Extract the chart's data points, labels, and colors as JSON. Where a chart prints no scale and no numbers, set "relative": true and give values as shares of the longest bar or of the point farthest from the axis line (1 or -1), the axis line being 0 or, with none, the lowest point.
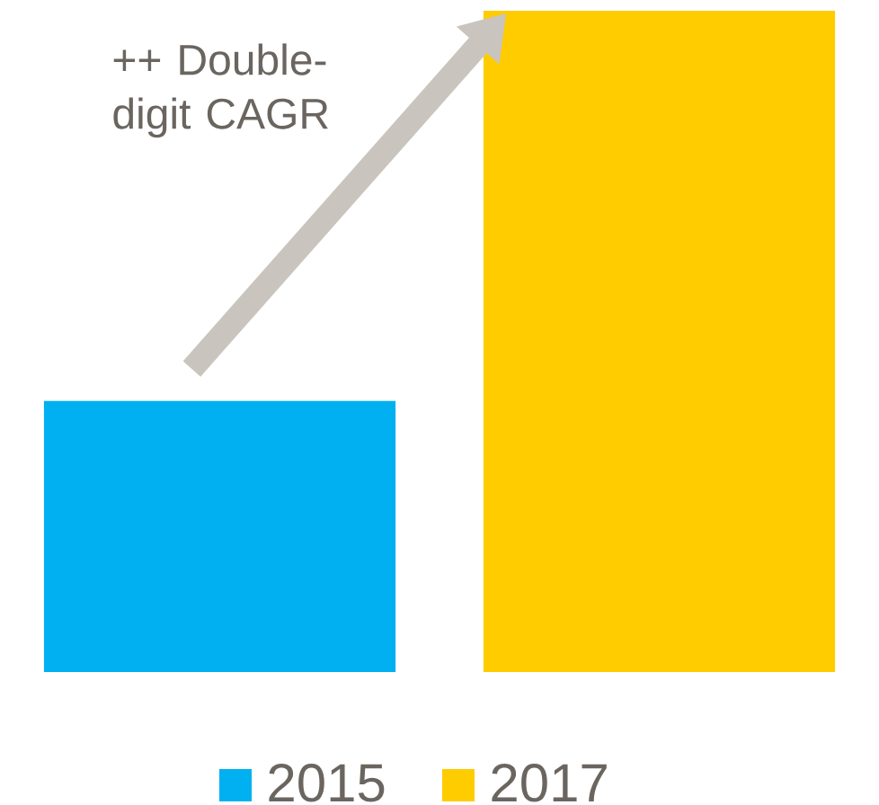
{
  "chart_data": {
    "type": "bar",
    "relative": true,
    "categories": [
      null
    ],
    "series": [
      {
        "name": "2015",
        "color": "#00b0f0",
        "values": [
          0.41
        ]
      },
      {
        "name": "2017",
        "color": "#ffcc00",
        "values": [
          1
        ]
      }
    ],
    "legend": "bottom",
    "annotations": [
      "++ Double-digit CAGR"
    ]
  }
}
